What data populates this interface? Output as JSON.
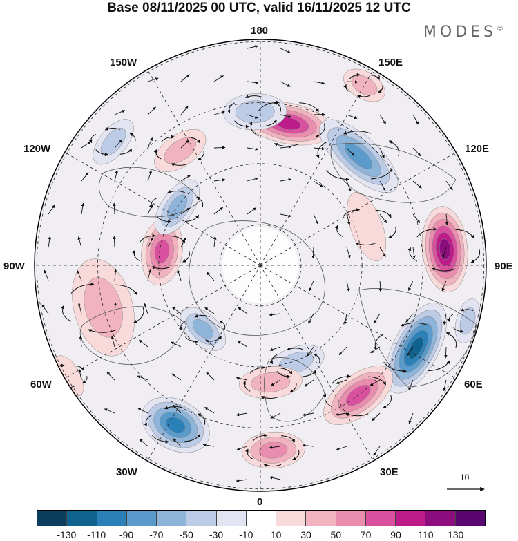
{
  "title": "Base 08/11/2025 00 UTC, valid 16/11/2025 12 UTC",
  "logo": "MODES",
  "logo_mark": "©",
  "longitude_labels": {
    "n180": "180",
    "w150": "150W",
    "e150": "150E",
    "w120": "120W",
    "e120": "120E",
    "w90": "90W",
    "e90": "90E",
    "w60": "60W",
    "e60": "60E",
    "w30": "30W",
    "e30": "30E",
    "s0": "0"
  },
  "reference_vector": {
    "label": "10"
  },
  "colorbar": {
    "colors": [
      "#0b3d5f",
      "#10628f",
      "#2b80b8",
      "#5a9bcb",
      "#8fb4da",
      "#bccbe6",
      "#e3e4f1",
      "#ffffff",
      "#f8dada",
      "#f1b3bf",
      "#e98cae",
      "#d9519e",
      "#bd1a8a",
      "#8c0d7e",
      "#5a0670"
    ],
    "ticks": [
      "-130",
      "-110",
      "-90",
      "-70",
      "-50",
      "-30",
      "-10",
      "10",
      "30",
      "50",
      "70",
      "90",
      "110",
      "130"
    ]
  },
  "anomaly_cells": [
    {
      "dir": 169,
      "r": 0.64,
      "value": 95,
      "rx": 0.2,
      "ry": 0.09
    },
    {
      "dir": 138,
      "r": 0.65,
      "value": -85,
      "rx": 0.22,
      "ry": 0.09
    },
    {
      "dir": 95,
      "r": 0.82,
      "value": 120,
      "rx": 0.19,
      "ry": 0.1
    },
    {
      "dir": 62,
      "r": 0.78,
      "value": -115,
      "rx": 0.22,
      "ry": 0.1
    },
    {
      "dir": 37,
      "r": 0.72,
      "value": 75,
      "rx": 0.18,
      "ry": 0.09
    },
    {
      "dir": 20,
      "r": 0.46,
      "value": -45,
      "rx": 0.13,
      "ry": 0.07
    },
    {
      "dir": 5,
      "r": 0.52,
      "value": 40,
      "rx": 0.14,
      "ry": 0.07
    },
    {
      "dir": 4,
      "r": 0.82,
      "value": 65,
      "rx": 0.14,
      "ry": 0.08
    },
    {
      "dir": -28,
      "r": 0.8,
      "value": -90,
      "rx": 0.16,
      "ry": 0.11
    },
    {
      "dir": -42,
      "r": 0.38,
      "value": -60,
      "rx": 0.12,
      "ry": 0.07
    },
    {
      "dir": -75,
      "r": 0.72,
      "value": 40,
      "rx": 0.22,
      "ry": 0.13
    },
    {
      "dir": -98,
      "r": 0.44,
      "value": 85,
      "rx": 0.15,
      "ry": 0.09
    },
    {
      "dir": -125,
      "r": 0.45,
      "value": -60,
      "rx": 0.14,
      "ry": 0.07
    },
    {
      "dir": -145,
      "r": 0.62,
      "value": 30,
      "rx": 0.13,
      "ry": 0.07
    },
    {
      "dir": -178,
      "r": 0.68,
      "value": -45,
      "rx": 0.14,
      "ry": 0.08
    },
    {
      "dir": 110,
      "r": 0.5,
      "value": 25,
      "rx": 0.16,
      "ry": 0.07
    },
    {
      "dir": 150,
      "r": 0.92,
      "value": 35,
      "rx": 0.1,
      "ry": 0.06
    },
    {
      "dir": 75,
      "r": 0.95,
      "value": -40,
      "rx": 0.1,
      "ry": 0.05
    },
    {
      "dir": -130,
      "r": 0.85,
      "value": -30,
      "rx": 0.12,
      "ry": 0.06
    },
    {
      "dir": -60,
      "r": 0.98,
      "value": 25,
      "rx": 0.1,
      "ry": 0.05
    }
  ]
}
